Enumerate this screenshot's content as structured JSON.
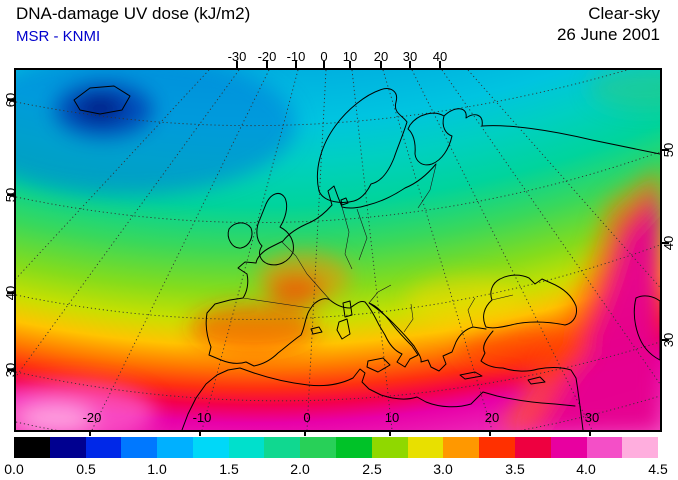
{
  "header": {
    "title": "DNA-damage UV dose (kJ/m2)",
    "source": "MSR - KNMI",
    "condition": "Clear-sky",
    "date": "26 June 2001"
  },
  "map": {
    "top_axis": [
      "-30",
      "-20",
      "-10",
      "0",
      "10",
      "20",
      "30",
      "40"
    ],
    "bottom_axis": [
      "-20",
      "-10",
      "0",
      "10",
      "20",
      "30"
    ],
    "left_axis": [
      "30",
      "40",
      "50",
      "60"
    ],
    "right_axis": [
      "30",
      "40",
      "50"
    ]
  },
  "colorbar": {
    "tick_labels": [
      "0.0",
      "0.5",
      "1.0",
      "1.5",
      "2.0",
      "2.5",
      "3.0",
      "3.5",
      "4.0",
      "4.5"
    ],
    "min": 0.0,
    "max": 4.5,
    "units": "kJ/m2",
    "segment_colors": [
      "#000000",
      "#000090",
      "#0028e8",
      "#0078ff",
      "#00b0ff",
      "#00d8f8",
      "#00e0cc",
      "#10d890",
      "#28d058",
      "#00c228",
      "#90d800",
      "#e8e000",
      "#ff9800",
      "#ff3000",
      "#ee0040",
      "#e800a0",
      "#f44fc7",
      "#ffaede"
    ]
  },
  "chart_data": {
    "type": "heatmap",
    "title": "DNA-damage UV dose (kJ/m2)",
    "condition": "Clear-sky",
    "date": "26 June 2001",
    "source": "MSR - KNMI",
    "region": "Europe / North Africa",
    "lon_ticks_top": [
      -30,
      -20,
      -10,
      0,
      10,
      20,
      30,
      40
    ],
    "lon_ticks_bottom": [
      -20,
      -10,
      0,
      10,
      20,
      30
    ],
    "lat_ticks_left": [
      30,
      40,
      50,
      60
    ],
    "lat_ticks_right": [
      30,
      40,
      50
    ],
    "value_units": "kJ/m2",
    "value_range": [
      0,
      4.5
    ],
    "colorbar_values": [
      0.0,
      0.5,
      1.0,
      1.5,
      2.0,
      2.5,
      3.0,
      3.5,
      4.0,
      4.5
    ],
    "legend_position": "bottom",
    "grid": "dotted graticule every 10 degrees, conic-style projection",
    "sampled_region_values": [
      {
        "region": "North Atlantic near Iceland (minimum)",
        "approx_value": 0.9
      },
      {
        "region": "Scandinavia",
        "approx_value": 1.4
      },
      {
        "region": "British Isles",
        "approx_value": 1.9
      },
      {
        "region": "Central Europe",
        "approx_value": 2.3
      },
      {
        "region": "Southern France / Alps",
        "approx_value": 2.9
      },
      {
        "region": "Spain",
        "approx_value": 3.3
      },
      {
        "region": "Turkey / Anatolia",
        "approx_value": 3.2
      },
      {
        "region": "North Africa coast",
        "approx_value": 3.8
      },
      {
        "region": "NW Africa and Middle East (maximum)",
        "approx_value": 4.2
      }
    ]
  }
}
